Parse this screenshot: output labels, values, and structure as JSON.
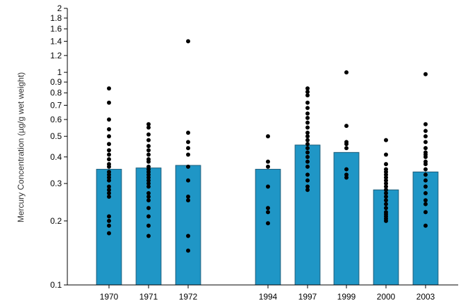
{
  "chart_data": {
    "type": "bar",
    "title": "",
    "xlabel": "",
    "ylabel": "Mercury Concentration (µg/g wet weight)",
    "yscale": "log",
    "ylim": [
      0.1,
      2
    ],
    "grid": false,
    "legend": "none",
    "bar_color": "#1f96c6",
    "bar_edge_color": "#1a5b78",
    "point_color": "#000000",
    "yticks": [
      {
        "value": 0.1,
        "label": "0.1"
      },
      {
        "value": 0.2,
        "label": "0.2"
      },
      {
        "value": 0.3,
        "label": "0.3"
      },
      {
        "value": 0.4,
        "label": "0.4"
      },
      {
        "value": 0.5,
        "label": "0.5"
      },
      {
        "value": 0.6,
        "label": "0.6"
      },
      {
        "value": 0.7,
        "label": "0.7"
      },
      {
        "value": 0.8,
        "label": "0.8"
      },
      {
        "value": 0.9,
        "label": "0.9"
      },
      {
        "value": 1,
        "label": "1"
      },
      {
        "value": 1.2,
        "label": "1.2"
      },
      {
        "value": 1.4,
        "label": "1.4"
      },
      {
        "value": 1.6,
        "label": "1.6"
      },
      {
        "value": 1.8,
        "label": "1.8"
      },
      {
        "value": 2,
        "label": "2"
      }
    ],
    "categories": [
      "1970",
      "1971",
      "1972",
      "1994",
      "1997",
      "1999",
      "2000",
      "2003"
    ],
    "values": [
      0.35,
      0.355,
      0.365,
      0.35,
      0.455,
      0.42,
      0.28,
      0.34
    ],
    "points": [
      [
        0.84,
        0.72,
        0.6,
        0.54,
        0.5,
        0.46,
        0.43,
        0.41,
        0.39,
        0.37,
        0.36,
        0.34,
        0.33,
        0.32,
        0.31,
        0.29,
        0.28,
        0.27,
        0.26,
        0.21,
        0.2,
        0.19,
        0.175
      ],
      [
        0.57,
        0.55,
        0.51,
        0.48,
        0.45,
        0.43,
        0.41,
        0.39,
        0.38,
        0.36,
        0.35,
        0.34,
        0.33,
        0.32,
        0.31,
        0.3,
        0.29,
        0.27,
        0.26,
        0.25,
        0.23,
        0.21,
        0.19,
        0.17
      ],
      [
        1.4,
        0.52,
        0.47,
        0.44,
        0.41,
        0.36,
        0.31,
        0.26,
        0.25,
        0.17,
        0.145
      ],
      [
        0.5,
        0.38,
        0.36,
        0.29,
        0.23,
        0.22,
        0.195
      ],
      [
        0.84,
        0.81,
        0.78,
        0.72,
        0.68,
        0.64,
        0.61,
        0.58,
        0.55,
        0.52,
        0.5,
        0.48,
        0.46,
        0.44,
        0.42,
        0.4,
        0.38,
        0.36,
        0.33,
        0.31,
        0.29,
        0.28
      ],
      [
        1.0,
        0.56,
        0.47,
        0.46,
        0.44,
        0.35,
        0.33,
        0.32
      ],
      [
        0.48,
        0.41,
        0.37,
        0.35,
        0.34,
        0.33,
        0.32,
        0.31,
        0.3,
        0.29,
        0.28,
        0.27,
        0.26,
        0.25,
        0.24,
        0.23,
        0.22,
        0.215,
        0.21,
        0.205,
        0.2
      ],
      [
        0.98,
        0.57,
        0.53,
        0.5,
        0.47,
        0.44,
        0.42,
        0.41,
        0.4,
        0.38,
        0.37,
        0.35,
        0.33,
        0.31,
        0.29,
        0.27,
        0.25,
        0.24,
        0.22,
        0.19
      ]
    ]
  }
}
